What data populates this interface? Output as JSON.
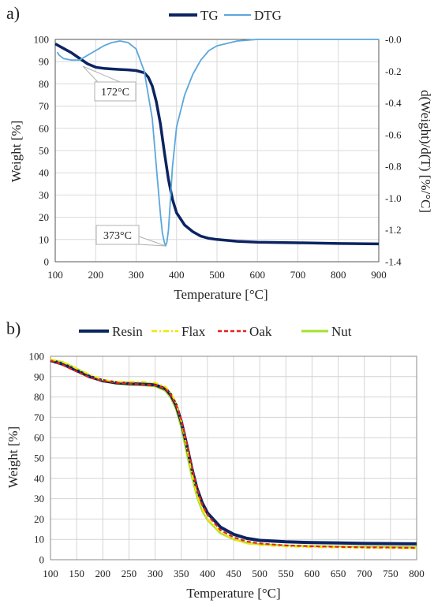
{
  "chart_data": [
    {
      "panel": "a)",
      "type": "line",
      "xlabel": "Temperature [°C]",
      "ylabel": "Weight [%]",
      "ylabel_right": "d(Weight)/d(T) [%/°C]",
      "xlim": [
        100,
        900
      ],
      "ylim": [
        0,
        100
      ],
      "ylim_right": [
        -1.4,
        0.0
      ],
      "xticks": [
        100,
        200,
        300,
        400,
        500,
        600,
        700,
        800,
        900
      ],
      "yticks": [
        0,
        10,
        20,
        30,
        40,
        50,
        60,
        70,
        80,
        90,
        100
      ],
      "yticks_right": [
        -1.4,
        -1.2,
        -1.0,
        -0.8,
        -0.6,
        -0.4,
        -0.2,
        0.0
      ],
      "yticks_right_labels": [
        "-1.4",
        "-1.2",
        "-1.0",
        "-0.8",
        "-0.6",
        "-0.4",
        "-0.2",
        "-0.0"
      ],
      "grid": true,
      "legend_position": "top",
      "series": [
        {
          "name": "TG",
          "axis": "left",
          "color": "#0b2461",
          "x": [
            100,
            120,
            140,
            160,
            180,
            200,
            220,
            240,
            260,
            280,
            300,
            320,
            330,
            340,
            350,
            360,
            370,
            380,
            390,
            400,
            420,
            440,
            460,
            480,
            500,
            550,
            600,
            700,
            800,
            900
          ],
          "y": [
            98,
            96,
            94,
            91.5,
            89,
            87.5,
            87,
            86.7,
            86.5,
            86.3,
            86,
            85,
            83,
            79,
            72,
            62,
            49,
            37,
            28,
            22,
            16.5,
            13.5,
            11.5,
            10.5,
            10,
            9.2,
            8.8,
            8.5,
            8.2,
            8
          ]
        },
        {
          "name": "DTG",
          "axis": "right",
          "color": "#5aa7dc",
          "x": [
            105,
            110,
            120,
            140,
            160,
            180,
            200,
            220,
            240,
            260,
            280,
            300,
            320,
            340,
            350,
            360,
            365,
            370,
            373,
            376,
            380,
            385,
            390,
            400,
            420,
            440,
            460,
            480,
            500,
            550,
            600,
            700,
            800,
            900
          ],
          "y": [
            -0.08,
            -0.1,
            -0.12,
            -0.13,
            -0.13,
            -0.1,
            -0.07,
            -0.04,
            -0.02,
            -0.01,
            -0.02,
            -0.06,
            -0.2,
            -0.5,
            -0.8,
            -1.1,
            -1.22,
            -1.28,
            -1.3,
            -1.28,
            -1.2,
            -1.0,
            -0.8,
            -0.55,
            -0.35,
            -0.22,
            -0.13,
            -0.07,
            -0.04,
            -0.01,
            0,
            0,
            0,
            0
          ]
        }
      ],
      "annotations": [
        {
          "text": "172°C",
          "x": 172,
          "y": 88
        },
        {
          "text": "373°C",
          "x": 373,
          "y": 7
        }
      ]
    },
    {
      "panel": "b)",
      "type": "line",
      "xlabel": "Temperature [°C]",
      "ylabel": "Weight [%]",
      "xlim": [
        100,
        800
      ],
      "ylim": [
        0,
        100
      ],
      "xticks": [
        100,
        150,
        200,
        250,
        300,
        350,
        400,
        450,
        500,
        550,
        600,
        650,
        700,
        750,
        800
      ],
      "yticks": [
        0,
        10,
        20,
        30,
        40,
        50,
        60,
        70,
        80,
        90,
        100
      ],
      "grid": true,
      "legend_position": "top",
      "series": [
        {
          "name": "Resin",
          "color": "#0b2461",
          "style": "solid",
          "x": [
            100,
            125,
            150,
            175,
            200,
            225,
            250,
            275,
            300,
            320,
            330,
            340,
            350,
            360,
            370,
            380,
            390,
            400,
            425,
            450,
            475,
            500,
            550,
            600,
            650,
            700,
            750,
            800
          ],
          "y": [
            98,
            96,
            93,
            90,
            88,
            87,
            86.6,
            86.3,
            86,
            84,
            81,
            76,
            68,
            57,
            45,
            35,
            28,
            23,
            16,
            12.5,
            10.5,
            9.5,
            8.8,
            8.4,
            8.2,
            8,
            7.9,
            7.8
          ]
        },
        {
          "name": "Flax",
          "color": "#f2e600",
          "style": "dashdot",
          "x": [
            100,
            125,
            150,
            175,
            200,
            225,
            250,
            275,
            300,
            320,
            330,
            340,
            350,
            360,
            370,
            380,
            390,
            400,
            425,
            450,
            475,
            500,
            550,
            600,
            650,
            700,
            750,
            800
          ],
          "y": [
            98.5,
            97,
            94,
            91,
            88.5,
            87.5,
            87.5,
            87.5,
            87,
            85,
            82,
            77,
            68,
            56,
            43,
            32,
            25,
            20,
            13.5,
            10,
            8,
            7.2,
            6.5,
            6.2,
            6,
            5.8,
            5.7,
            5.5
          ]
        },
        {
          "name": "Oak",
          "color": "#e8211b",
          "style": "dashed",
          "x": [
            100,
            125,
            150,
            175,
            200,
            225,
            250,
            275,
            300,
            320,
            330,
            340,
            350,
            360,
            370,
            380,
            390,
            400,
            425,
            450,
            475,
            500,
            550,
            600,
            650,
            700,
            750,
            800
          ],
          "y": [
            98,
            95.5,
            92.5,
            89.5,
            88,
            87,
            86.5,
            86.2,
            85.8,
            84,
            81,
            76,
            69,
            58,
            46,
            35,
            27,
            22,
            14.5,
            11,
            9,
            8,
            7,
            6.6,
            6.3,
            6.1,
            6,
            5.8
          ]
        },
        {
          "name": "Nut",
          "color": "#a6e02e",
          "style": "solid",
          "x": [
            100,
            125,
            150,
            175,
            200,
            225,
            250,
            275,
            300,
            320,
            330,
            340,
            350,
            360,
            370,
            380,
            390,
            400,
            425,
            450,
            475,
            500,
            550,
            600,
            650,
            700,
            750,
            800
          ],
          "y": [
            98.5,
            97,
            94,
            90.5,
            88,
            86.5,
            86,
            85.8,
            85.2,
            83,
            79.5,
            74,
            65,
            53,
            41,
            31,
            24,
            19.5,
            13,
            10,
            8.3,
            7.6,
            7,
            6.7,
            6.5,
            6.4,
            6.3,
            6.2
          ]
        }
      ]
    }
  ]
}
